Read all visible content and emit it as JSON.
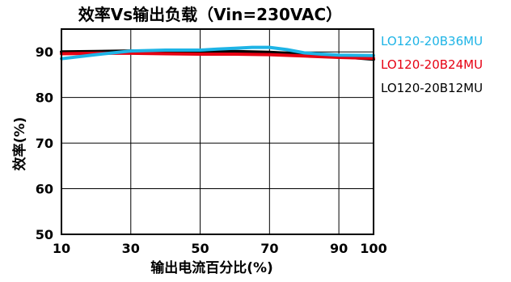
{
  "chart_data": {
    "type": "line",
    "title": "效率Vs输出负载（Vin=230VAC）",
    "xlabel": "输出电流百分比(%)",
    "ylabel": "效率(%)",
    "xlim": [
      10,
      100
    ],
    "ylim": [
      50,
      95
    ],
    "xticks": [
      10,
      30,
      50,
      70,
      90,
      100
    ],
    "yticks": [
      50,
      60,
      70,
      80,
      90
    ],
    "grid": true,
    "legend_position": "right",
    "series": [
      {
        "name": "LO120-20B36MU",
        "color": "#1EB4E6",
        "x": [
          10,
          20,
          30,
          40,
          50,
          55,
          60,
          65,
          70,
          75,
          80,
          85,
          90,
          100
        ],
        "y": [
          88.5,
          89.4,
          90.2,
          90.4,
          90.4,
          90.6,
          90.8,
          91.0,
          91.0,
          90.5,
          89.8,
          89.5,
          89.3,
          89.2
        ]
      },
      {
        "name": "LO120-20B24MU",
        "color": "#E60012",
        "x": [
          10,
          20,
          30,
          40,
          50,
          60,
          70,
          80,
          90,
          100
        ],
        "y": [
          89.6,
          89.7,
          89.7,
          89.6,
          89.5,
          89.5,
          89.4,
          89.1,
          88.8,
          88.6
        ]
      },
      {
        "name": "LO120-20B12MU",
        "color": "#000000",
        "x": [
          10,
          20,
          30,
          40,
          50,
          60,
          70,
          80,
          90,
          100
        ],
        "y": [
          90.0,
          90.1,
          90.2,
          90.2,
          90.2,
          90.1,
          89.9,
          89.5,
          89.0,
          88.4
        ]
      }
    ]
  }
}
